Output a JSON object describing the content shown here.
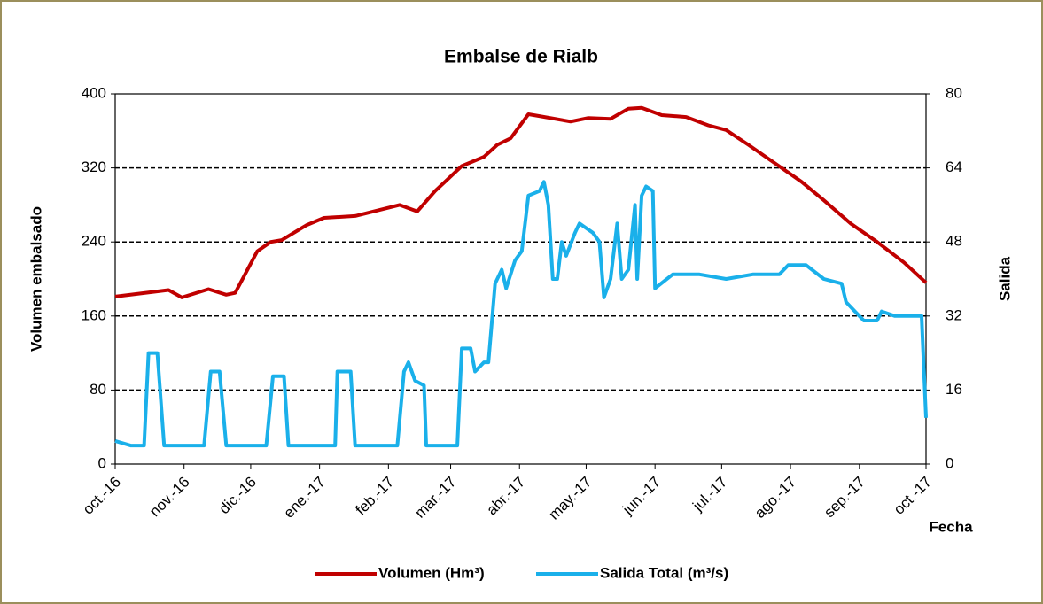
{
  "chart_data": {
    "type": "line",
    "title": "Embalse de Rialb",
    "x_label": "Fecha",
    "y_label": "Volumen embalsado",
    "y2_label": "Salida",
    "xlim": [
      "2016-10-01",
      "2017-10-01"
    ],
    "xticks": [
      {
        "value": "2016-10-01",
        "label": "oct.-16"
      },
      {
        "value": "2016-11-01",
        "label": "nov.-16"
      },
      {
        "value": "2016-12-01",
        "label": "dic.-16"
      },
      {
        "value": "2017-01-01",
        "label": "ene.-17"
      },
      {
        "value": "2017-02-01",
        "label": "feb.-17"
      },
      {
        "value": "2017-03-01",
        "label": "mar.-17"
      },
      {
        "value": "2017-04-01",
        "label": "abr.-17"
      },
      {
        "value": "2017-05-01",
        "label": "may.-17"
      },
      {
        "value": "2017-06-01",
        "label": "jun.-17"
      },
      {
        "value": "2017-07-01",
        "label": "jul.-17"
      },
      {
        "value": "2017-08-01",
        "label": "ago.-17"
      },
      {
        "value": "2017-09-01",
        "label": "sep.-17"
      },
      {
        "value": "2017-10-01",
        "label": "oct.-17"
      }
    ],
    "ylim": [
      0,
      400
    ],
    "yticks": [
      0,
      80,
      160,
      240,
      320,
      400
    ],
    "y2lim": [
      0,
      80
    ],
    "y2ticks": [
      0,
      16,
      32,
      48,
      64,
      80
    ],
    "grid": true,
    "legend": "bottom",
    "series": [
      {
        "name": "Volumen (Hm³)",
        "color": "#c00000",
        "axis": "y",
        "x": [
          "2016-10-01",
          "2016-10-25",
          "2016-10-31",
          "2016-11-12",
          "2016-11-20",
          "2016-11-24",
          "2016-12-04",
          "2016-12-10",
          "2016-12-15",
          "2016-12-26",
          "2017-01-03",
          "2017-01-17",
          "2017-02-06",
          "2017-02-14",
          "2017-02-22",
          "2017-03-06",
          "2017-03-16",
          "2017-03-22",
          "2017-03-28",
          "2017-04-05",
          "2017-04-10",
          "2017-04-24",
          "2017-05-02",
          "2017-05-12",
          "2017-05-20",
          "2017-05-26",
          "2017-06-04",
          "2017-06-15",
          "2017-06-25",
          "2017-07-03",
          "2017-07-13",
          "2017-07-25",
          "2017-08-06",
          "2017-08-16",
          "2017-08-28",
          "2017-09-09",
          "2017-09-21",
          "2017-10-01"
        ],
        "values": [
          181,
          188,
          180,
          189,
          183,
          185,
          230,
          240,
          242,
          258,
          266,
          268,
          280,
          273,
          295,
          322,
          332,
          345,
          352,
          378,
          376,
          370,
          374,
          373,
          384,
          385,
          377,
          375,
          366,
          361,
          345,
          325,
          305,
          285,
          260,
          240,
          218,
          196
        ]
      },
      {
        "name": "Salida Total (m³/s)",
        "color": "#1ab0ea",
        "axis": "y2",
        "x": [
          "2016-10-01",
          "2016-10-08",
          "2016-10-14",
          "2016-10-16",
          "2016-10-20",
          "2016-10-23",
          "2016-11-10",
          "2016-11-13",
          "2016-11-17",
          "2016-11-20",
          "2016-12-08",
          "2016-12-11",
          "2016-12-16",
          "2016-12-18",
          "2017-01-08",
          "2017-01-09",
          "2017-01-15",
          "2017-01-17",
          "2017-02-05",
          "2017-02-08",
          "2017-02-10",
          "2017-02-13",
          "2017-02-17",
          "2017-02-18",
          "2017-03-04",
          "2017-03-06",
          "2017-03-10",
          "2017-03-12",
          "2017-03-16",
          "2017-03-18",
          "2017-03-21",
          "2017-03-24",
          "2017-03-26",
          "2017-03-30",
          "2017-04-02",
          "2017-04-05",
          "2017-04-10",
          "2017-04-12",
          "2017-04-14",
          "2017-04-16",
          "2017-04-18",
          "2017-04-20",
          "2017-04-22",
          "2017-04-26",
          "2017-04-28",
          "2017-05-04",
          "2017-05-07",
          "2017-05-09",
          "2017-05-12",
          "2017-05-15",
          "2017-05-17",
          "2017-05-20",
          "2017-05-23",
          "2017-05-24",
          "2017-05-26",
          "2017-05-28",
          "2017-05-31",
          "2017-06-01",
          "2017-06-09",
          "2017-06-21",
          "2017-07-03",
          "2017-07-15",
          "2017-07-27",
          "2017-07-31",
          "2017-08-08",
          "2017-08-16",
          "2017-08-24",
          "2017-08-26",
          "2017-08-30",
          "2017-09-03",
          "2017-09-09",
          "2017-09-11",
          "2017-09-17",
          "2017-09-29",
          "2017-10-01"
        ],
        "values": [
          5,
          4,
          4,
          24,
          24,
          4,
          4,
          20,
          20,
          4,
          4,
          19,
          19,
          4,
          4,
          20,
          20,
          4,
          4,
          20,
          22,
          18,
          17,
          4,
          4,
          25,
          25,
          20,
          22,
          22,
          39,
          42,
          38,
          44,
          46,
          58,
          59,
          61,
          56,
          40,
          40,
          48,
          45,
          50,
          52,
          50,
          48,
          36,
          40,
          52,
          40,
          42,
          56,
          40,
          58,
          60,
          59,
          38,
          41,
          41,
          40,
          41,
          41,
          43,
          43,
          40,
          39,
          35,
          33,
          31,
          31,
          33,
          32,
          32,
          10
        ]
      }
    ]
  }
}
